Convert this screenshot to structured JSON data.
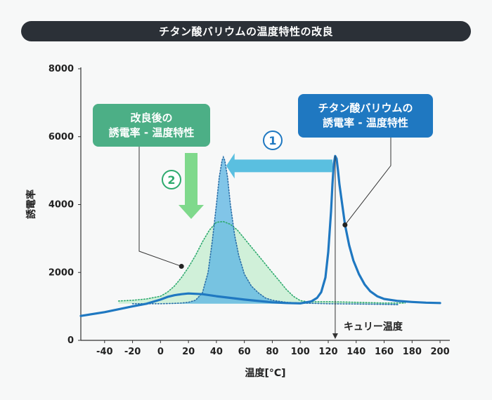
{
  "title": "チタン酸バリウムの温度特性の改良",
  "colors": {
    "background": "#f7f8f8",
    "title_bar": "#2b3037",
    "blue_curve": "#1f78c1",
    "blue_peak_fill": "#5ab4e3",
    "green_fill": "#c9efd3",
    "green_dots": "#2eaa6e",
    "arrow_blue": "#5abfe0",
    "arrow_green": "#7fd98c",
    "green_box": "#4caf86",
    "blue_box": "#1f78c1"
  },
  "annotations": {
    "improved_box": {
      "line1": "改良後の",
      "line2": "誘電率 - 温度特性"
    },
    "original_box": {
      "line1": "チタン酸バリウムの",
      "line2": "誘電率 - 温度特性"
    },
    "step1": "1",
    "step2": "2",
    "curie_label": "キュリー温度"
  },
  "chart_data": {
    "type": "line",
    "title": "チタン酸バリウムの温度特性の改良",
    "xlabel": "温度[°C]",
    "ylabel": "誘電率",
    "xlim": [
      -57,
      207
    ],
    "ylim": [
      0,
      8000
    ],
    "x_ticks": [
      -40,
      -20,
      0,
      20,
      40,
      60,
      80,
      100,
      120,
      140,
      160,
      180,
      200
    ],
    "y_ticks": [
      0,
      2000,
      4000,
      6000,
      8000
    ],
    "curie_temperature": 125,
    "series": [
      {
        "key": "original",
        "style": "solid",
        "x": [
          -57,
          -40,
          -20,
          -10,
          0,
          5,
          10,
          15,
          20,
          30,
          40,
          50,
          60,
          70,
          80,
          90,
          100,
          108,
          112,
          115,
          118,
          120,
          122,
          123,
          124,
          125,
          126,
          127,
          128,
          130,
          132,
          135,
          138,
          142,
          146,
          150,
          155,
          160,
          170,
          180,
          190,
          200
        ],
        "y": [
          720,
          830,
          1000,
          1080,
          1200,
          1280,
          1330,
          1360,
          1380,
          1360,
          1300,
          1250,
          1200,
          1160,
          1120,
          1100,
          1090,
          1150,
          1250,
          1420,
          1850,
          2600,
          3800,
          4600,
          5200,
          5430,
          5350,
          5000,
          4600,
          4000,
          3400,
          2800,
          2350,
          1950,
          1650,
          1450,
          1300,
          1220,
          1160,
          1130,
          1110,
          1100
        ]
      },
      {
        "key": "improved_broad",
        "style": "dotted",
        "x": [
          -30,
          -20,
          -10,
          0,
          5,
          10,
          15,
          20,
          25,
          30,
          35,
          40,
          45,
          50,
          55,
          60,
          65,
          70,
          75,
          80,
          85,
          90,
          95,
          100,
          105,
          108,
          110,
          115,
          120,
          130,
          140,
          150,
          160,
          170,
          175
        ],
        "y": [
          1160,
          1180,
          1220,
          1300,
          1420,
          1600,
          1850,
          2150,
          2500,
          2900,
          3250,
          3480,
          3500,
          3420,
          3250,
          3000,
          2750,
          2500,
          2250,
          2000,
          1750,
          1500,
          1300,
          1170,
          1140,
          1140,
          1140,
          1140,
          1140,
          1130,
          1120,
          1110,
          1100,
          1100,
          1100
        ]
      },
      {
        "key": "improved_narrow",
        "style": "dotted",
        "x": [
          -20,
          0,
          10,
          15,
          20,
          25,
          30,
          34,
          37,
          40,
          42,
          44,
          45,
          46,
          48,
          50,
          53,
          56,
          60,
          65,
          70,
          75,
          80,
          90,
          100,
          110,
          120,
          140,
          160,
          170
        ],
        "y": [
          1080,
          1080,
          1090,
          1100,
          1120,
          1180,
          1400,
          2000,
          2900,
          4000,
          4800,
          5300,
          5400,
          5300,
          4800,
          4000,
          3100,
          2500,
          1950,
          1600,
          1400,
          1250,
          1180,
          1120,
          1100,
          1090,
          1080,
          1070,
          1060,
          1050
        ]
      }
    ]
  }
}
